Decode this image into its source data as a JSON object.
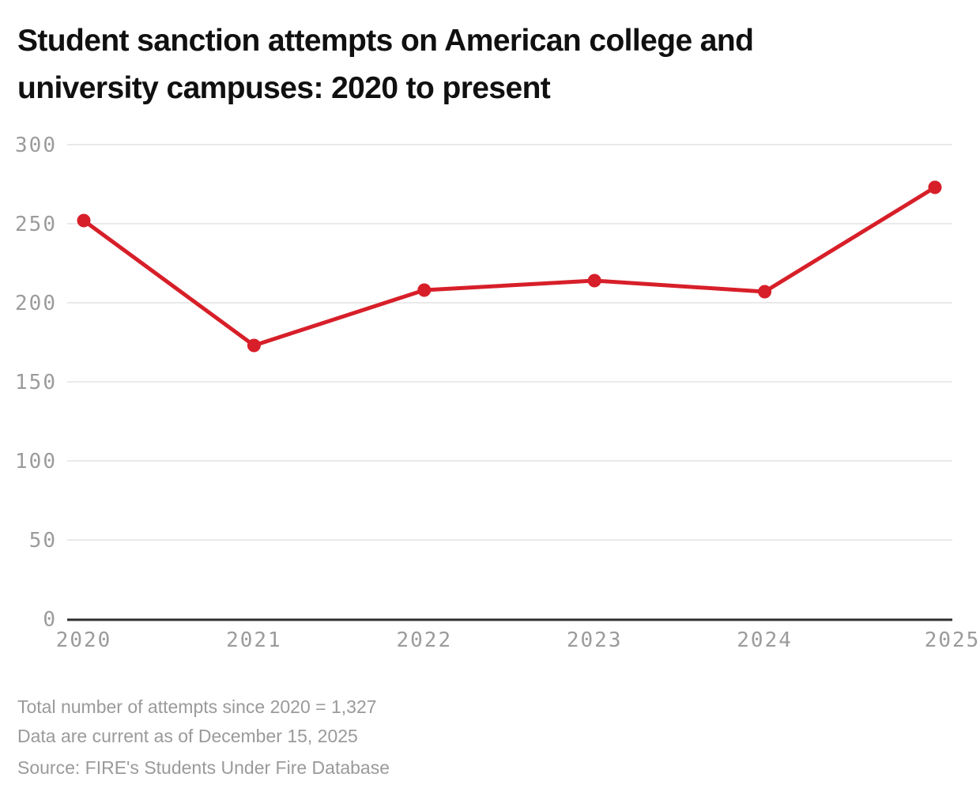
{
  "header": {
    "title": "Student sanction attempts on American college and university campuses: 2020 to present",
    "title_lines": [
      "Student sanction attempts on American college and",
      "university campuses: 2020 to present"
    ]
  },
  "chart_data": {
    "type": "line",
    "title": "Student sanction attempts on American college and university campuses: 2020 to present",
    "categories": [
      "2020",
      "2021",
      "2022",
      "2023",
      "2024",
      "2025"
    ],
    "series": [
      {
        "name": "Student sanction attempts",
        "values": [
          252,
          173,
          208,
          214,
          207,
          273
        ]
      }
    ],
    "xlabel": "",
    "ylabel": "",
    "ylim": [
      0,
      300
    ],
    "yticks": [
      0,
      50,
      100,
      150,
      200,
      250,
      300
    ],
    "grid": "horizontal",
    "legend": "none",
    "marker": "filled-circle"
  },
  "footer": {
    "note_line1": "Total number of attempts since 2020 = 1,327",
    "note_line2": "Data are current as of December 15, 2025",
    "source": "Source: FIRE's Students Under Fire Database"
  },
  "colors": {
    "line": "#d71f29",
    "title_text": "#101010",
    "tick_text": "#9b9b9b",
    "gridline": "#e4e4e4",
    "axis_line": "#2e2e2e",
    "footer_text": "#9a9a9a"
  }
}
